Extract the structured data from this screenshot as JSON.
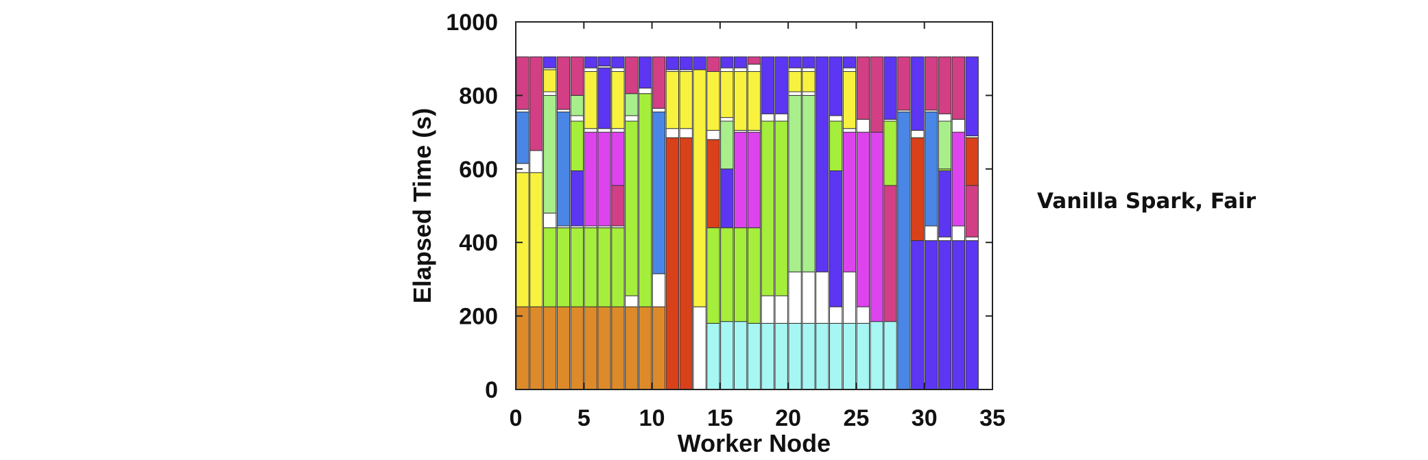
{
  "chart_data": {
    "type": "bar",
    "subtype": "stacked-timeline",
    "title": "",
    "xlabel": "Worker Node",
    "ylabel": "Elapsed Time (s)",
    "xlim": [
      0,
      35
    ],
    "ylim": [
      0,
      1000
    ],
    "xticks": [
      "0",
      "5",
      "10",
      "15",
      "20",
      "25",
      "30",
      "35"
    ],
    "yticks": [
      "0",
      "200",
      "400",
      "600",
      "800",
      "1000"
    ],
    "grid": false,
    "legend": "none",
    "colors": {
      "orange": "#dd8a2a",
      "red": "#d9411a",
      "cyan": "#a6f6f4",
      "blue": "#5c36f2",
      "sky": "#4a86e6",
      "yellow": "#f8f23f",
      "green": "#a6ee3c",
      "lightgreen": "#a8ef8c",
      "magenta": "#dd44ee",
      "pink": "#d23f85",
      "idle": "#ffffff"
    },
    "nodes": [
      {
        "x": 0,
        "segments": [
          [
            "orange",
            225
          ],
          [
            "yellow",
            590
          ],
          [
            "idle",
            615
          ],
          [
            "sky",
            755
          ],
          [
            "idle",
            762
          ],
          [
            "pink",
            905
          ]
        ]
      },
      {
        "x": 1,
        "segments": [
          [
            "orange",
            225
          ],
          [
            "yellow",
            590
          ],
          [
            "idle",
            650
          ],
          [
            "pink",
            905
          ]
        ]
      },
      {
        "x": 2,
        "segments": [
          [
            "orange",
            225
          ],
          [
            "green",
            440
          ],
          [
            "idle",
            480
          ],
          [
            "lightgreen",
            800
          ],
          [
            "idle",
            810
          ],
          [
            "yellow",
            870
          ],
          [
            "idle",
            875
          ],
          [
            "blue",
            905
          ]
        ]
      },
      {
        "x": 3,
        "segments": [
          [
            "orange",
            225
          ],
          [
            "green",
            440
          ],
          [
            "idle",
            445
          ],
          [
            "sky",
            755
          ],
          [
            "idle",
            762
          ],
          [
            "pink",
            905
          ]
        ]
      },
      {
        "x": 4,
        "segments": [
          [
            "orange",
            225
          ],
          [
            "green",
            440
          ],
          [
            "idle",
            445
          ],
          [
            "blue",
            595
          ],
          [
            "green",
            595
          ],
          [
            "green",
            730
          ],
          [
            "idle",
            745
          ],
          [
            "lightgreen",
            800
          ],
          [
            "pink",
            905
          ]
        ]
      },
      {
        "x": 5,
        "segments": [
          [
            "orange",
            225
          ],
          [
            "green",
            440
          ],
          [
            "idle",
            445
          ],
          [
            "magenta",
            700
          ],
          [
            "idle",
            710
          ],
          [
            "yellow",
            865
          ],
          [
            "idle",
            875
          ],
          [
            "blue",
            905
          ]
        ]
      },
      {
        "x": 6,
        "segments": [
          [
            "orange",
            225
          ],
          [
            "green",
            440
          ],
          [
            "idle",
            445
          ],
          [
            "magenta",
            700
          ],
          [
            "idle",
            710
          ],
          [
            "blue",
            875
          ],
          [
            "idle",
            880
          ],
          [
            "blue",
            905
          ]
        ]
      },
      {
        "x": 7,
        "segments": [
          [
            "orange",
            225
          ],
          [
            "green",
            440
          ],
          [
            "idle",
            445
          ],
          [
            "pink",
            555
          ],
          [
            "magenta",
            700
          ],
          [
            "idle",
            710
          ],
          [
            "yellow",
            865
          ],
          [
            "idle",
            875
          ],
          [
            "blue",
            905
          ]
        ]
      },
      {
        "x": 8,
        "segments": [
          [
            "orange",
            225
          ],
          [
            "idle",
            255
          ],
          [
            "green",
            730
          ],
          [
            "idle",
            745
          ],
          [
            "lightgreen",
            805
          ],
          [
            "pink",
            905
          ]
        ]
      },
      {
        "x": 9,
        "segments": [
          [
            "orange",
            225
          ],
          [
            "green",
            805
          ],
          [
            "idle",
            820
          ],
          [
            "blue",
            905
          ]
        ]
      },
      {
        "x": 10,
        "segments": [
          [
            "orange",
            225
          ],
          [
            "idle",
            315
          ],
          [
            "sky",
            755
          ],
          [
            "idle",
            765
          ],
          [
            "pink",
            905
          ]
        ]
      },
      {
        "x": 11,
        "segments": [
          [
            "red",
            685
          ],
          [
            "idle",
            710
          ],
          [
            "yellow",
            865
          ],
          [
            "idle",
            870
          ],
          [
            "blue",
            905
          ]
        ]
      },
      {
        "x": 12,
        "segments": [
          [
            "red",
            685
          ],
          [
            "idle",
            710
          ],
          [
            "yellow",
            865
          ],
          [
            "idle",
            870
          ],
          [
            "blue",
            905
          ]
        ]
      },
      {
        "x": 13,
        "segments": [
          [
            "cyan",
            0
          ],
          [
            "idle",
            225
          ],
          [
            "yellow",
            870
          ],
          [
            "idle",
            870
          ],
          [
            "blue",
            905
          ]
        ]
      },
      {
        "x": 14,
        "segments": [
          [
            "cyan",
            180
          ],
          [
            "green",
            440
          ],
          [
            "red",
            680
          ],
          [
            "idle",
            705
          ],
          [
            "yellow",
            865
          ],
          [
            "pink",
            905
          ]
        ]
      },
      {
        "x": 15,
        "segments": [
          [
            "cyan",
            185
          ],
          [
            "green",
            440
          ],
          [
            "blue",
            600
          ],
          [
            "green",
            600
          ],
          [
            "lightgreen",
            730
          ],
          [
            "idle",
            740
          ],
          [
            "yellow",
            865
          ],
          [
            "idle",
            875
          ],
          [
            "blue",
            905
          ]
        ]
      },
      {
        "x": 16,
        "segments": [
          [
            "cyan",
            185
          ],
          [
            "green",
            440
          ],
          [
            "magenta",
            700
          ],
          [
            "idle",
            705
          ],
          [
            "yellow",
            865
          ],
          [
            "idle",
            875
          ],
          [
            "blue",
            905
          ]
        ]
      },
      {
        "x": 17,
        "segments": [
          [
            "cyan",
            180
          ],
          [
            "green",
            440
          ],
          [
            "magenta",
            700
          ],
          [
            "idle",
            705
          ],
          [
            "yellow",
            865
          ],
          [
            "idle",
            885
          ],
          [
            "pink",
            905
          ]
        ]
      },
      {
        "x": 18,
        "segments": [
          [
            "cyan",
            180
          ],
          [
            "idle",
            255
          ],
          [
            "green",
            730
          ],
          [
            "idle",
            750
          ],
          [
            "blue",
            905
          ]
        ]
      },
      {
        "x": 19,
        "segments": [
          [
            "cyan",
            180
          ],
          [
            "idle",
            255
          ],
          [
            "green",
            730
          ],
          [
            "idle",
            750
          ],
          [
            "blue",
            905
          ]
        ]
      },
      {
        "x": 20,
        "segments": [
          [
            "cyan",
            180
          ],
          [
            "idle",
            320
          ],
          [
            "lightgreen",
            800
          ],
          [
            "idle",
            810
          ],
          [
            "yellow",
            865
          ],
          [
            "idle",
            875
          ],
          [
            "blue",
            905
          ]
        ]
      },
      {
        "x": 21,
        "segments": [
          [
            "cyan",
            180
          ],
          [
            "idle",
            320
          ],
          [
            "lightgreen",
            800
          ],
          [
            "idle",
            810
          ],
          [
            "yellow",
            865
          ],
          [
            "idle",
            875
          ],
          [
            "blue",
            905
          ]
        ]
      },
      {
        "x": 22,
        "segments": [
          [
            "cyan",
            180
          ],
          [
            "idle",
            320
          ],
          [
            "blue",
            905
          ]
        ]
      },
      {
        "x": 23,
        "segments": [
          [
            "cyan",
            180
          ],
          [
            "idle",
            225
          ],
          [
            "blue",
            595
          ],
          [
            "green",
            595
          ],
          [
            "green",
            730
          ],
          [
            "idle",
            745
          ],
          [
            "blue",
            905
          ]
        ]
      },
      {
        "x": 24,
        "segments": [
          [
            "cyan",
            180
          ],
          [
            "idle",
            320
          ],
          [
            "magenta",
            700
          ],
          [
            "idle",
            710
          ],
          [
            "yellow",
            865
          ],
          [
            "idle",
            875
          ],
          [
            "blue",
            905
          ]
        ]
      },
      {
        "x": 25,
        "segments": [
          [
            "cyan",
            180
          ],
          [
            "idle",
            225
          ],
          [
            "magenta",
            700
          ],
          [
            "idle",
            735
          ],
          [
            "pink",
            905
          ]
        ]
      },
      {
        "x": 26,
        "segments": [
          [
            "cyan",
            185
          ],
          [
            "magenta",
            700
          ],
          [
            "pink",
            905
          ]
        ]
      },
      {
        "x": 27,
        "segments": [
          [
            "cyan",
            185
          ],
          [
            "pink",
            555
          ],
          [
            "green",
            730
          ],
          [
            "idle",
            735
          ],
          [
            "blue",
            905
          ]
        ]
      },
      {
        "x": 28,
        "segments": [
          [
            "sky",
            755
          ],
          [
            "idle",
            760
          ],
          [
            "pink",
            905
          ]
        ]
      },
      {
        "x": 29,
        "segments": [
          [
            "blue",
            405
          ],
          [
            "red",
            685
          ],
          [
            "idle",
            705
          ],
          [
            "blue",
            905
          ]
        ]
      },
      {
        "x": 30,
        "segments": [
          [
            "blue",
            405
          ],
          [
            "idle",
            445
          ],
          [
            "sky",
            755
          ],
          [
            "idle",
            760
          ],
          [
            "pink",
            905
          ]
        ]
      },
      {
        "x": 31,
        "segments": [
          [
            "blue",
            405
          ],
          [
            "idle",
            415
          ],
          [
            "blue",
            595
          ],
          [
            "green",
            600
          ],
          [
            "lightgreen",
            730
          ],
          [
            "idle",
            750
          ],
          [
            "pink",
            905
          ]
        ]
      },
      {
        "x": 32,
        "segments": [
          [
            "blue",
            405
          ],
          [
            "idle",
            445
          ],
          [
            "magenta",
            700
          ],
          [
            "idle",
            735
          ],
          [
            "pink",
            905
          ]
        ]
      },
      {
        "x": 33,
        "segments": [
          [
            "blue",
            405
          ],
          [
            "idle",
            415
          ],
          [
            "pink",
            555
          ],
          [
            "red",
            685
          ],
          [
            "idle",
            690
          ],
          [
            "blue",
            905
          ]
        ]
      }
    ]
  },
  "side_label": "Vanilla Spark, Fair"
}
